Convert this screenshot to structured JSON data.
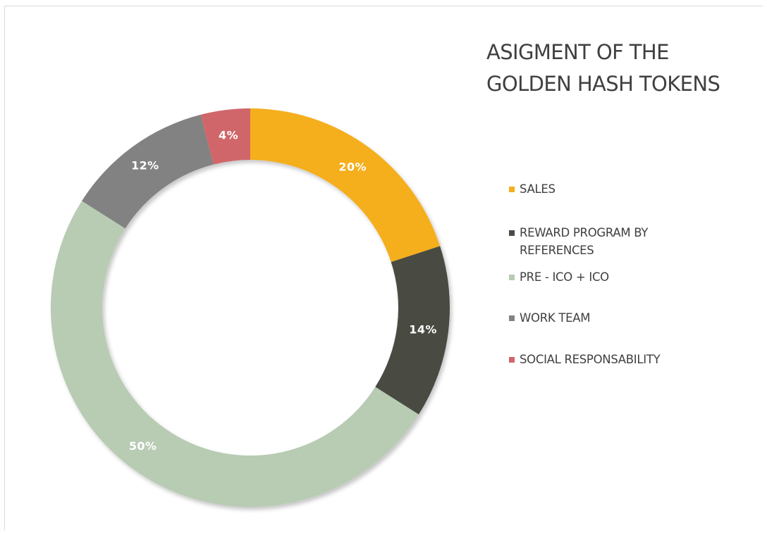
{
  "chart_data": {
    "type": "pie",
    "variant": "donut",
    "title_lines": [
      "ASIGMENT OF THE",
      "GOLDEN HASH TOKENS"
    ],
    "legend_position": "right",
    "slices": [
      {
        "name": "SALES",
        "value": 20,
        "label": "20%",
        "color": "#f5ae1e"
      },
      {
        "name": "REWARD PROGRAM BY REFERENCES",
        "value": 14,
        "label": "14%",
        "color": "#4a4c43"
      },
      {
        "name": "PRE - ICO + ICO",
        "value": 50,
        "label": "50%",
        "color": "#b8cbb3"
      },
      {
        "name": "WORK TEAM",
        "value": 12,
        "label": "12%",
        "color": "#828282"
      },
      {
        "name": "SOCIAL RESPONSABILITY",
        "value": 4,
        "label": "4%",
        "color": "#d0666a"
      }
    ],
    "start_angle": "12 o'clock",
    "direction": "clockwise"
  }
}
